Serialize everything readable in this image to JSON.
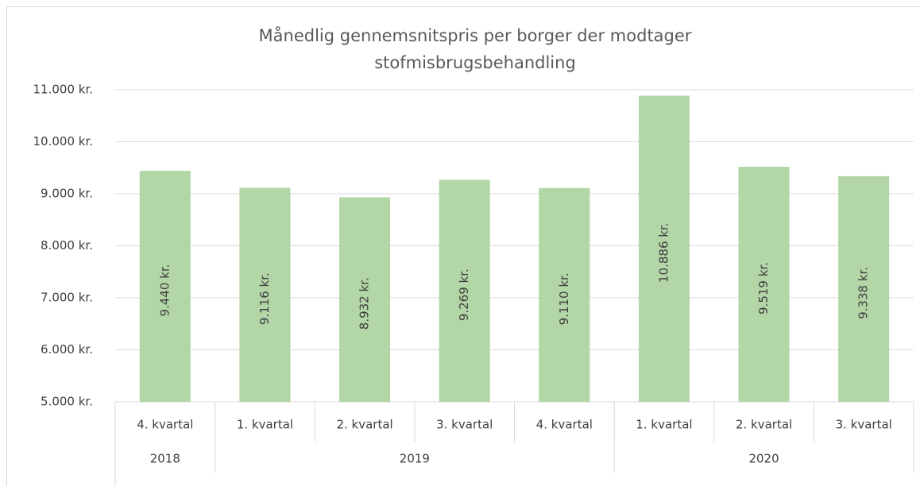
{
  "chart_data": {
    "type": "bar",
    "title": [
      "Månedlig gennemsnitspris per borger der modtager",
      "stofmisbrugsbehandling"
    ],
    "categories": [
      "4. kvartal",
      "1. kvartal",
      "2. kvartal",
      "3. kvartal",
      "4. kvartal",
      "1. kvartal",
      "2. kvartal",
      "3. kvartal"
    ],
    "category_groups": [
      {
        "label": "2018",
        "size": 1
      },
      {
        "label": "2019",
        "size": 4
      },
      {
        "label": "2020",
        "size": 3
      }
    ],
    "values": [
      9440,
      9116,
      8932,
      9269,
      9110,
      10886,
      9519,
      9338
    ],
    "value_labels": [
      "9.440 kr.",
      "9.116 kr.",
      "8.932 kr.",
      "9.269 kr.",
      "9.110 kr.",
      "10.886 kr.",
      "9.519 kr.",
      "9.338 kr."
    ],
    "color": "#b3d6a6",
    "ylim": [
      5000,
      11000
    ],
    "yticks": [
      {
        "value": 5000,
        "label": "5.000 kr."
      },
      {
        "value": 6000,
        "label": "6.000 kr."
      },
      {
        "value": 7000,
        "label": "7.000 kr."
      },
      {
        "value": 8000,
        "label": "8.000 kr."
      },
      {
        "value": 9000,
        "label": "9.000 kr."
      },
      {
        "value": 10000,
        "label": "10.000 kr."
      },
      {
        "value": 11000,
        "label": "11.000 kr."
      }
    ],
    "grid": true
  }
}
